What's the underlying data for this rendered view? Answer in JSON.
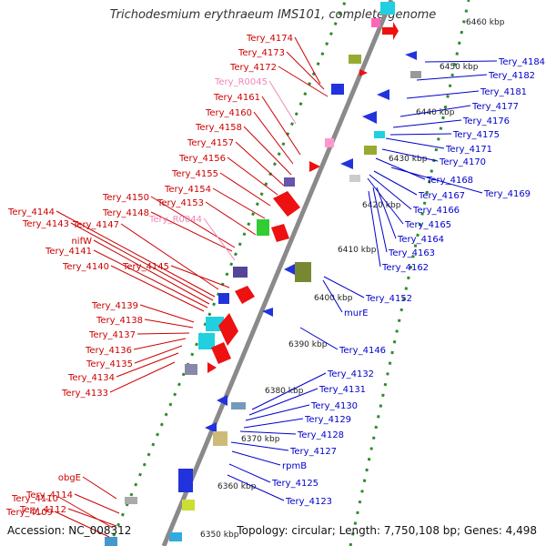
{
  "header": {
    "title": "Trichodesmium erythraeum IMS101, complete genome"
  },
  "footer": {
    "accession": "Accession: NC_008312",
    "topology": "Topology: circular; Length: 7,750,108 bp; Genes: 4,498"
  },
  "colors": {
    "axis": "#8a8a8a",
    "ruler": "#2e8b2e",
    "plus_label": "#cc0000",
    "minus_label": "#0000cc",
    "rna_label": "#ee88bb"
  },
  "ruler_labels": [
    "6460 kbp",
    "6450 kbp",
    "6440 kbp",
    "6430 kbp",
    "6420 kbp",
    "6410 kbp",
    "6400 kbp",
    "6390 kbp",
    "6380 kbp",
    "6370 kbp",
    "6360 kbp",
    "6350 kbp"
  ],
  "left_labels": [
    "Tery_4174",
    "Tery_4173",
    "Tery_4172",
    "Tery_R0045",
    "Tery_4161",
    "Tery_4160",
    "Tery_4158",
    "Tery_4157",
    "Tery_4156",
    "Tery_4155",
    "Tery_4154",
    "Tery_4150",
    "Tery_4153",
    "Tery_4148",
    "Tery_R0044",
    "Tery_4144",
    "Tery_4143",
    "Tery_4147",
    "nifW",
    "Tery_4141",
    "Tery_4140",
    "Tery_4145",
    "Tery_4139",
    "Tery_4138",
    "Tery_4137",
    "Tery_4136",
    "Tery_4135",
    "Tery_4134",
    "Tery_4133",
    "obgE",
    "Tery_4114",
    "Tery_4112",
    "Tery_4110",
    "Tery_4109"
  ],
  "right_labels": [
    "Tery_4184",
    "Tery_4182",
    "Tery_4181",
    "Tery_4177",
    "Tery_4176",
    "Tery_4175",
    "Tery_4171",
    "Tery_4170",
    "Tery_4168",
    "Tery_4169",
    "Tery_4167",
    "Tery_4166",
    "Tery_4165",
    "Tery_4164",
    "Tery_4163",
    "Tery_4162",
    "Tery_4152",
    "murE",
    "Tery_4146",
    "Tery_4132",
    "Tery_4131",
    "Tery_4130",
    "Tery_4129",
    "Tery_4128",
    "Tery_4127",
    "rpmB",
    "Tery_4125",
    "Tery_4123"
  ]
}
